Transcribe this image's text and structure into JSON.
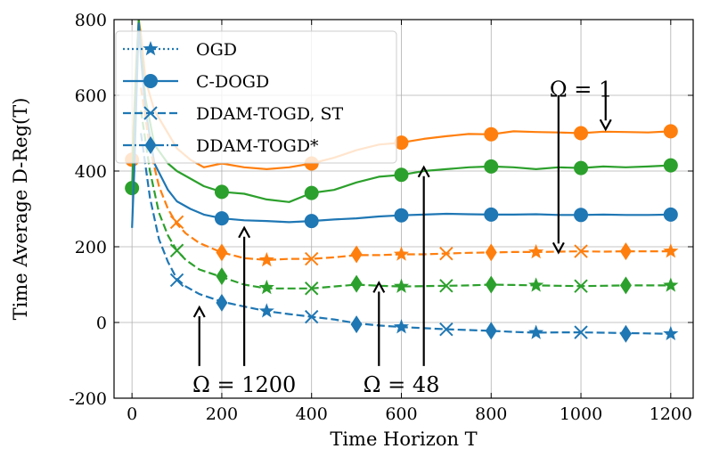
{
  "chart_data": {
    "type": "line",
    "title": "",
    "xlabel": "Time Horizon T",
    "ylabel": "Time Average D-Reg(T)",
    "xlim": [
      -40,
      1250
    ],
    "ylim": [
      -200,
      800
    ],
    "xticks": [
      0,
      200,
      400,
      600,
      800,
      1000,
      1200
    ],
    "yticks": [
      -200,
      0,
      200,
      400,
      600,
      800
    ],
    "grid": true,
    "legend_position": "top-left",
    "colors": {
      "blue": "#1f77b4",
      "orange": "#ff7f0e",
      "green": "#2ca02c"
    },
    "legend": [
      {
        "label": "OGD",
        "style": "dotted",
        "marker": "star"
      },
      {
        "label": "C-DOGD",
        "style": "solid",
        "marker": "circle"
      },
      {
        "label": "DDAM-TOGD, ST",
        "style": "dashed",
        "marker": "x"
      },
      {
        "label": "DDAM-TOGD*",
        "style": "dashdot",
        "marker": "diamond"
      }
    ],
    "series": [
      {
        "name": "C-DOGD, Ω = 1",
        "color": "orange",
        "style": "solid",
        "marker": "circle",
        "x": [
          0,
          5,
          10,
          15,
          20,
          30,
          50,
          80,
          100,
          130,
          160,
          200,
          250,
          300,
          350,
          400,
          450,
          500,
          550,
          600,
          650,
          700,
          750,
          800,
          850,
          900,
          950,
          1000,
          1050,
          1100,
          1150,
          1200
        ],
        "y": [
          430,
          560,
          700,
          800,
          760,
          640,
          560,
          500,
          460,
          430,
          410,
          420,
          410,
          405,
          410,
          420,
          435,
          455,
          470,
          475,
          485,
          492,
          498,
          497,
          505,
          503,
          502,
          500,
          504,
          503,
          502,
          505
        ],
        "marker_x": [
          0,
          400,
          600,
          800,
          1000,
          1200
        ]
      },
      {
        "name": "C-DOGD, Ω = 48",
        "color": "green",
        "style": "solid",
        "marker": "circle",
        "x": [
          0,
          5,
          10,
          15,
          20,
          30,
          50,
          80,
          100,
          130,
          160,
          200,
          250,
          300,
          350,
          400,
          450,
          500,
          550,
          600,
          650,
          700,
          750,
          800,
          850,
          900,
          950,
          1000,
          1050,
          1100,
          1150,
          1200
        ],
        "y": [
          355,
          520,
          680,
          800,
          720,
          590,
          470,
          420,
          400,
          380,
          360,
          345,
          340,
          325,
          318,
          342,
          350,
          370,
          385,
          390,
          400,
          405,
          410,
          412,
          410,
          405,
          410,
          408,
          412,
          410,
          412,
          415
        ],
        "marker_x": [
          0,
          200,
          400,
          600,
          800,
          1000,
          1200
        ]
      },
      {
        "name": "C-DOGD, Ω = 1200",
        "color": "blue",
        "style": "solid",
        "marker": "circle",
        "x": [
          0,
          5,
          10,
          15,
          20,
          30,
          50,
          80,
          100,
          130,
          160,
          200,
          250,
          300,
          350,
          400,
          450,
          500,
          550,
          600,
          650,
          700,
          750,
          800,
          850,
          900,
          950,
          1000,
          1050,
          1100,
          1150,
          1200
        ],
        "y": [
          250,
          400,
          600,
          790,
          700,
          560,
          420,
          350,
          320,
          300,
          285,
          275,
          270,
          268,
          265,
          268,
          272,
          275,
          280,
          283,
          285,
          287,
          286,
          285,
          285,
          286,
          284,
          284,
          285,
          284,
          284,
          285
        ],
        "marker_x": [
          200,
          400,
          600,
          800,
          1000,
          1200
        ]
      },
      {
        "name": "DDAM-TOGD, Ω = 1",
        "color": "orange",
        "style": "dashed",
        "marker": "mixed",
        "x": [
          20,
          40,
          60,
          80,
          100,
          120,
          150,
          200,
          250,
          300,
          350,
          400,
          450,
          500,
          550,
          600,
          650,
          700,
          750,
          800,
          850,
          900,
          950,
          1000,
          1050,
          1100,
          1150,
          1200
        ],
        "y": [
          620,
          460,
          360,
          300,
          260,
          235,
          210,
          185,
          170,
          165,
          168,
          168,
          172,
          178,
          178,
          180,
          180,
          182,
          184,
          185,
          186,
          186,
          187,
          188,
          187,
          188,
          188,
          188
        ],
        "markers": [
          {
            "x": 100,
            "y": 265,
            "kind": "x"
          },
          {
            "x": 200,
            "y": 185,
            "kind": "diamond"
          },
          {
            "x": 300,
            "y": 165,
            "kind": "star"
          },
          {
            "x": 400,
            "y": 168,
            "kind": "x"
          },
          {
            "x": 500,
            "y": 180,
            "kind": "diamond"
          },
          {
            "x": 600,
            "y": 180,
            "kind": "star"
          },
          {
            "x": 700,
            "y": 182,
            "kind": "x"
          },
          {
            "x": 800,
            "y": 185,
            "kind": "diamond"
          },
          {
            "x": 900,
            "y": 186,
            "kind": "star"
          },
          {
            "x": 1000,
            "y": 188,
            "kind": "x"
          },
          {
            "x": 1100,
            "y": 188,
            "kind": "diamond"
          },
          {
            "x": 1200,
            "y": 188,
            "kind": "star"
          }
        ]
      },
      {
        "name": "DDAM-TOGD, Ω = 48",
        "color": "green",
        "style": "dashed",
        "marker": "mixed",
        "x": [
          20,
          40,
          60,
          80,
          100,
          120,
          150,
          200,
          250,
          300,
          350,
          400,
          450,
          500,
          550,
          600,
          650,
          700,
          750,
          800,
          850,
          900,
          950,
          1000,
          1050,
          1100,
          1150,
          1200
        ],
        "y": [
          560,
          400,
          290,
          230,
          190,
          165,
          140,
          120,
          100,
          90,
          90,
          90,
          95,
          100,
          97,
          95,
          96,
          97,
          98,
          100,
          99,
          98,
          97,
          96,
          97,
          98,
          98,
          98
        ],
        "markers": [
          {
            "x": 100,
            "y": 190,
            "kind": "x"
          },
          {
            "x": 200,
            "y": 122,
            "kind": "diamond"
          },
          {
            "x": 300,
            "y": 92,
            "kind": "star"
          },
          {
            "x": 400,
            "y": 90,
            "kind": "x"
          },
          {
            "x": 500,
            "y": 102,
            "kind": "diamond"
          },
          {
            "x": 600,
            "y": 95,
            "kind": "star"
          },
          {
            "x": 700,
            "y": 97,
            "kind": "x"
          },
          {
            "x": 800,
            "y": 100,
            "kind": "diamond"
          },
          {
            "x": 900,
            "y": 98,
            "kind": "star"
          },
          {
            "x": 1000,
            "y": 96,
            "kind": "x"
          },
          {
            "x": 1100,
            "y": 98,
            "kind": "diamond"
          },
          {
            "x": 1200,
            "y": 98,
            "kind": "star"
          }
        ]
      },
      {
        "name": "DDAM-TOGD, Ω = 1200",
        "color": "blue",
        "style": "dashed",
        "marker": "mixed",
        "x": [
          20,
          40,
          60,
          80,
          100,
          120,
          150,
          200,
          250,
          300,
          350,
          400,
          450,
          500,
          550,
          600,
          650,
          700,
          750,
          800,
          850,
          900,
          950,
          1000,
          1050,
          1100,
          1150,
          1200
        ],
        "y": [
          500,
          330,
          220,
          160,
          115,
          95,
          75,
          55,
          42,
          30,
          22,
          15,
          8,
          -2,
          -8,
          -12,
          -15,
          -18,
          -20,
          -22,
          -25,
          -27,
          -26,
          -26,
          -27,
          -28,
          -29,
          -30
        ],
        "markers": [
          {
            "x": 100,
            "y": 112,
            "kind": "x"
          },
          {
            "x": 200,
            "y": 52,
            "kind": "diamond"
          },
          {
            "x": 300,
            "y": 30,
            "kind": "star"
          },
          {
            "x": 400,
            "y": 15,
            "kind": "x"
          },
          {
            "x": 500,
            "y": -5,
            "kind": "diamond"
          },
          {
            "x": 600,
            "y": -12,
            "kind": "star"
          },
          {
            "x": 700,
            "y": -18,
            "kind": "x"
          },
          {
            "x": 800,
            "y": -22,
            "kind": "diamond"
          },
          {
            "x": 900,
            "y": -27,
            "kind": "star"
          },
          {
            "x": 1000,
            "y": -26,
            "kind": "x"
          },
          {
            "x": 1100,
            "y": -30,
            "kind": "diamond"
          },
          {
            "x": 1200,
            "y": -30,
            "kind": "star"
          }
        ]
      }
    ],
    "annotations": [
      {
        "text": "Ω = 1200",
        "x": 250,
        "y": -165,
        "arrows": [
          {
            "from": [
              150,
              -115
            ],
            "to": [
              150,
              40
            ]
          },
          {
            "from": [
              250,
              -115
            ],
            "to": [
              250,
              250
            ]
          }
        ]
      },
      {
        "text": "Ω = 48",
        "x": 600,
        "y": -165,
        "arrows": [
          {
            "from": [
              550,
              -115
            ],
            "to": [
              550,
              105
            ]
          },
          {
            "from": [
              650,
              -115
            ],
            "to": [
              650,
              410
            ]
          }
        ]
      },
      {
        "text": "Ω = 1",
        "x": 1000,
        "y": 615,
        "arrows": [
          {
            "from": [
              950,
              600
            ],
            "to": [
              950,
              185
            ]
          },
          {
            "from": [
              1055,
              600
            ],
            "to": [
              1055,
              510
            ]
          }
        ]
      }
    ]
  }
}
